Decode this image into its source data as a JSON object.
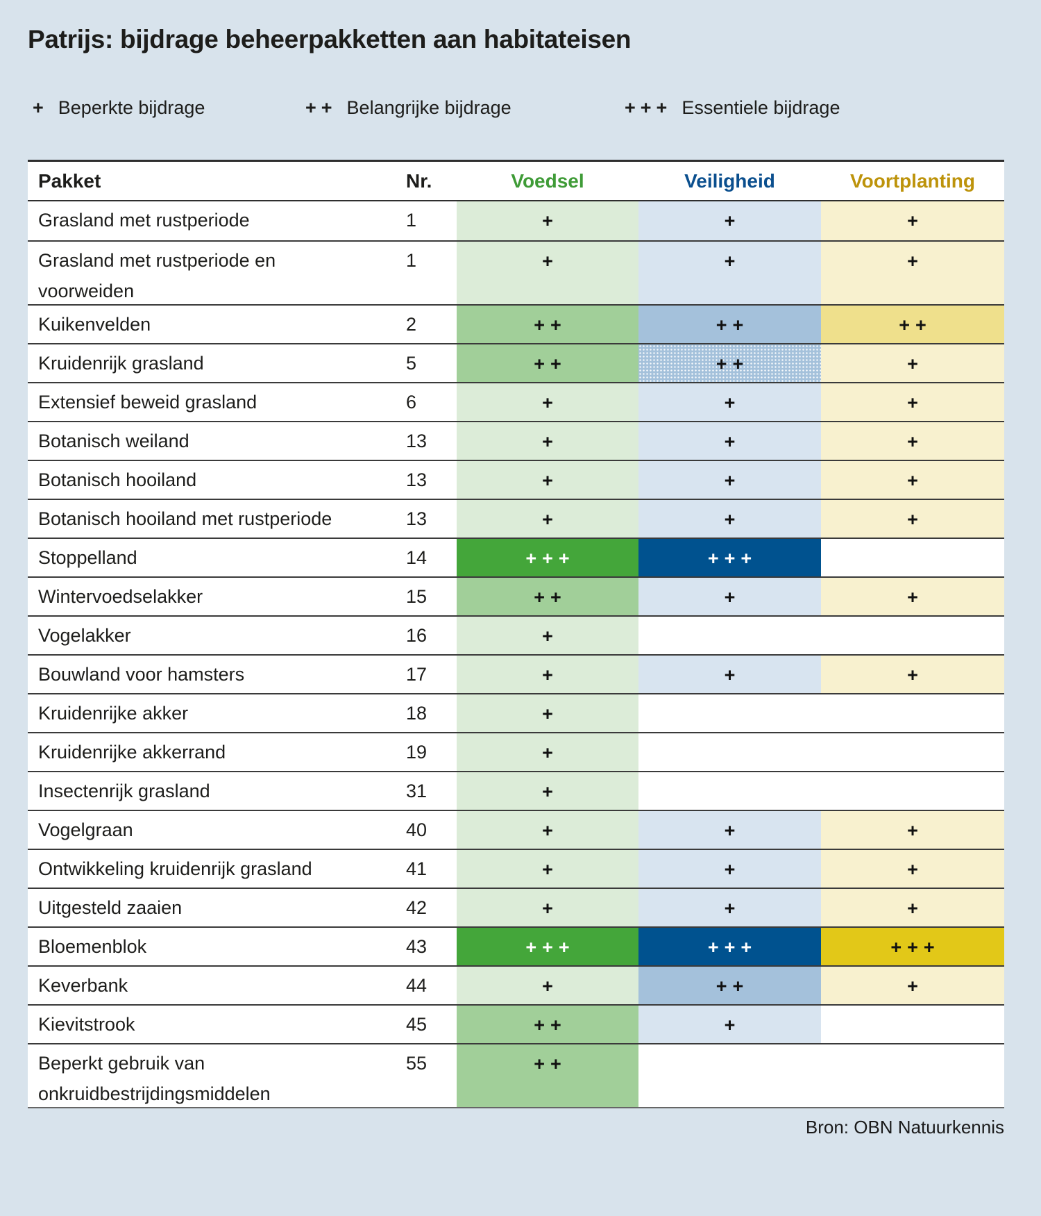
{
  "title": "Patrijs: bijdrage beheerpakketten aan habitateisen",
  "legend": [
    {
      "symbol": "+",
      "label": "Beperkte bijdrage"
    },
    {
      "symbol": "++",
      "label": "Belangrijke bijdrage"
    },
    {
      "symbol": "+++",
      "label": "Essentiele bijdrage"
    }
  ],
  "table": {
    "headers": {
      "pakket": "Pakket",
      "nr": "Nr.",
      "voedsel": "Voedsel",
      "veiligheid": "Veiligheid",
      "voortplanting": "Voortplanting"
    },
    "rows": [
      {
        "pakket": "Grasland met rustperiode",
        "nr": "1",
        "voedsel": 1,
        "veiligheid": 1,
        "voortplanting": 1
      },
      {
        "pakket": "Grasland met rustperiode en voorweiden",
        "nr": "1",
        "tall": true,
        "voedsel": 1,
        "veiligheid": 1,
        "voortplanting": 1
      },
      {
        "pakket": "Kuikenvelden",
        "nr": "2",
        "voedsel": 2,
        "veiligheid": 2,
        "voortplanting": 2
      },
      {
        "pakket": "Kruidenrijk grasland",
        "nr": "5",
        "voedsel": 2,
        "veiligheid": 2,
        "veiligheid_dotted": true,
        "voortplanting": 1
      },
      {
        "pakket": "Extensief beweid grasland",
        "nr": "6",
        "voedsel": 1,
        "veiligheid": 1,
        "voortplanting": 1
      },
      {
        "pakket": "Botanisch weiland",
        "nr": "13",
        "voedsel": 1,
        "veiligheid": 1,
        "voortplanting": 1
      },
      {
        "pakket": "Botanisch hooiland",
        "nr": "13",
        "voedsel": 1,
        "veiligheid": 1,
        "voortplanting": 1
      },
      {
        "pakket": "Botanisch hooiland met rustperiode",
        "nr": "13",
        "voedsel": 1,
        "veiligheid": 1,
        "voortplanting": 1
      },
      {
        "pakket": "Stoppelland",
        "nr": "14",
        "voedsel": 3,
        "veiligheid": 3,
        "voortplanting": 0
      },
      {
        "pakket": "Wintervoedselakker",
        "nr": "15",
        "voedsel": 2,
        "veiligheid": 1,
        "voortplanting": 1
      },
      {
        "pakket": "Vogelakker",
        "nr": "16",
        "voedsel": 1,
        "veiligheid": 0,
        "voortplanting": 0
      },
      {
        "pakket": "Bouwland voor hamsters",
        "nr": "17",
        "voedsel": 1,
        "veiligheid": 1,
        "voortplanting": 1
      },
      {
        "pakket": "Kruidenrijke akker",
        "nr": "18",
        "voedsel": 1,
        "veiligheid": 0,
        "voortplanting": 0
      },
      {
        "pakket": "Kruidenrijke akkerrand",
        "nr": "19",
        "voedsel": 1,
        "veiligheid": 0,
        "voortplanting": 0
      },
      {
        "pakket": "Insectenrijk grasland",
        "nr": "31",
        "voedsel": 1,
        "veiligheid": 0,
        "voortplanting": 0
      },
      {
        "pakket": "Vogelgraan",
        "nr": "40",
        "voedsel": 1,
        "veiligheid": 1,
        "voortplanting": 1
      },
      {
        "pakket": "Ontwikkeling kruidenrijk grasland",
        "nr": "41",
        "voedsel": 1,
        "veiligheid": 1,
        "voortplanting": 1
      },
      {
        "pakket": "Uitgesteld zaaien",
        "nr": "42",
        "voedsel": 1,
        "veiligheid": 1,
        "voortplanting": 1
      },
      {
        "pakket": "Bloemenblok",
        "nr": "43",
        "voedsel": 3,
        "veiligheid": 3,
        "voortplanting": 3
      },
      {
        "pakket": "Keverbank",
        "nr": "44",
        "voedsel": 1,
        "veiligheid": 2,
        "voortplanting": 1
      },
      {
        "pakket": "Kievitstrook",
        "nr": "45",
        "voedsel": 2,
        "veiligheid": 1,
        "voortplanting": 0
      },
      {
        "pakket": "Beperkt gebruik van onkruidbestrijdingsmiddelen",
        "nr": "55",
        "tall": true,
        "voedsel": 2,
        "veiligheid": 0,
        "voortplanting": 0
      }
    ]
  },
  "source": "Bron: OBN Natuurkennis",
  "colors": {
    "page_background": "#d8e3ec",
    "voedsel_header": "#3f9b37",
    "veiligheid_header": "#0b4f8e",
    "voortplanting_header": "#bd930b",
    "voedsel_levels": [
      "#ffffff",
      "#dcecd8",
      "#a1cf99",
      "#44a63a"
    ],
    "veiligheid_levels": [
      "#ffffff",
      "#d8e4f0",
      "#a4c1db",
      "#00528f"
    ],
    "voortplanting_levels": [
      "#ffffff",
      "#f8f1cf",
      "#efe08c",
      "#e2c818"
    ]
  },
  "chart_data": {
    "type": "table",
    "title": "Patrijs: bijdrage beheerpakketten aan habitateisen",
    "columns": [
      "Pakket",
      "Nr.",
      "Voedsel",
      "Veiligheid",
      "Voortplanting"
    ],
    "legend": {
      "+": "Beperkte bijdrage",
      "++": "Belangrijke bijdrage",
      "+++": "Essentiele bijdrage"
    },
    "rows": [
      [
        "Grasland met rustperiode",
        "1",
        "+",
        "+",
        "+"
      ],
      [
        "Grasland met rustperiode en voorweiden",
        "1",
        "+",
        "+",
        "+"
      ],
      [
        "Kuikenvelden",
        "2",
        "++",
        "++",
        "++"
      ],
      [
        "Kruidenrijk grasland",
        "5",
        "++",
        "++",
        "+"
      ],
      [
        "Extensief beweid grasland",
        "6",
        "+",
        "+",
        "+"
      ],
      [
        "Botanisch weiland",
        "13",
        "+",
        "+",
        "+"
      ],
      [
        "Botanisch hooiland",
        "13",
        "+",
        "+",
        "+"
      ],
      [
        "Botanisch hooiland met rustperiode",
        "13",
        "+",
        "+",
        "+"
      ],
      [
        "Stoppelland",
        "14",
        "+++",
        "+++",
        ""
      ],
      [
        "Wintervoedselakker",
        "15",
        "++",
        "+",
        "+"
      ],
      [
        "Vogelakker",
        "16",
        "+",
        "",
        ""
      ],
      [
        "Bouwland voor hamsters",
        "17",
        "+",
        "+",
        "+"
      ],
      [
        "Kruidenrijke akker",
        "18",
        "+",
        "",
        ""
      ],
      [
        "Kruidenrijke akkerrand",
        "19",
        "+",
        "",
        ""
      ],
      [
        "Insectenrijk grasland",
        "31",
        "+",
        "",
        ""
      ],
      [
        "Vogelgraan",
        "40",
        "+",
        "+",
        "+"
      ],
      [
        "Ontwikkeling kruidenrijk grasland",
        "41",
        "+",
        "+",
        "+"
      ],
      [
        "Uitgesteld zaaien",
        "42",
        "+",
        "+",
        "+"
      ],
      [
        "Bloemenblok",
        "43",
        "+++",
        "+++",
        "+++"
      ],
      [
        "Keverbank",
        "44",
        "+",
        "++",
        "+"
      ],
      [
        "Kievitstrook",
        "45",
        "++",
        "+",
        ""
      ],
      [
        "Beperkt gebruik van onkruidbestrijdingsmiddelen",
        "55",
        "++",
        "",
        ""
      ]
    ],
    "source": "Bron: OBN Natuurkennis"
  }
}
